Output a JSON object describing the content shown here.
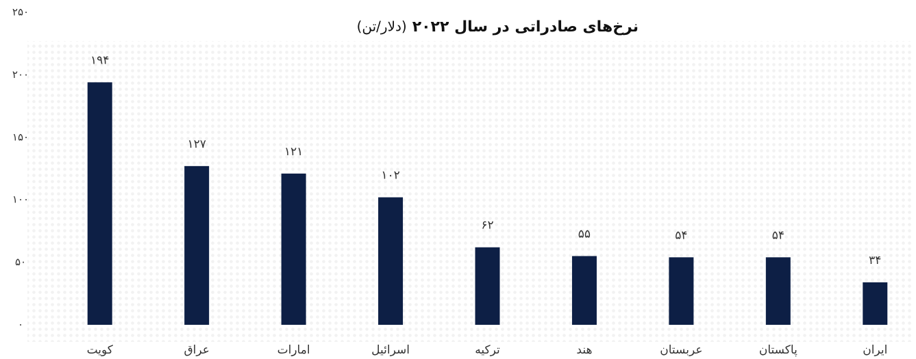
{
  "chart_data": {
    "type": "bar",
    "title": "نرخ‌های صادراتی در سال ۲۰۲۲",
    "unit": "(دلار/تن)",
    "categories": [
      "کویت",
      "عراق",
      "امارات",
      "اسرائیل",
      "ترکیه",
      "هند",
      "عربستان",
      "پاکستان",
      "ایران"
    ],
    "values": [
      194,
      127,
      121,
      102,
      62,
      55,
      54,
      54,
      34
    ],
    "value_labels": [
      "۱۹۴",
      "۱۲۷",
      "۱۲۱",
      "۱۰۲",
      "۶۲",
      "۵۵",
      "۵۴",
      "۵۴",
      "۳۴"
    ],
    "color": "#0d1f45",
    "ylim": [
      0,
      250
    ],
    "yticks": [
      {
        "value": 0,
        "label": "۰"
      },
      {
        "value": 50,
        "label": "۵۰"
      },
      {
        "value": 100,
        "label": "۱۰۰"
      },
      {
        "value": 150,
        "label": "۱۵۰"
      },
      {
        "value": 200,
        "label": "۲۰۰"
      },
      {
        "value": 250,
        "label": "۲۵۰"
      }
    ],
    "grid": false
  }
}
